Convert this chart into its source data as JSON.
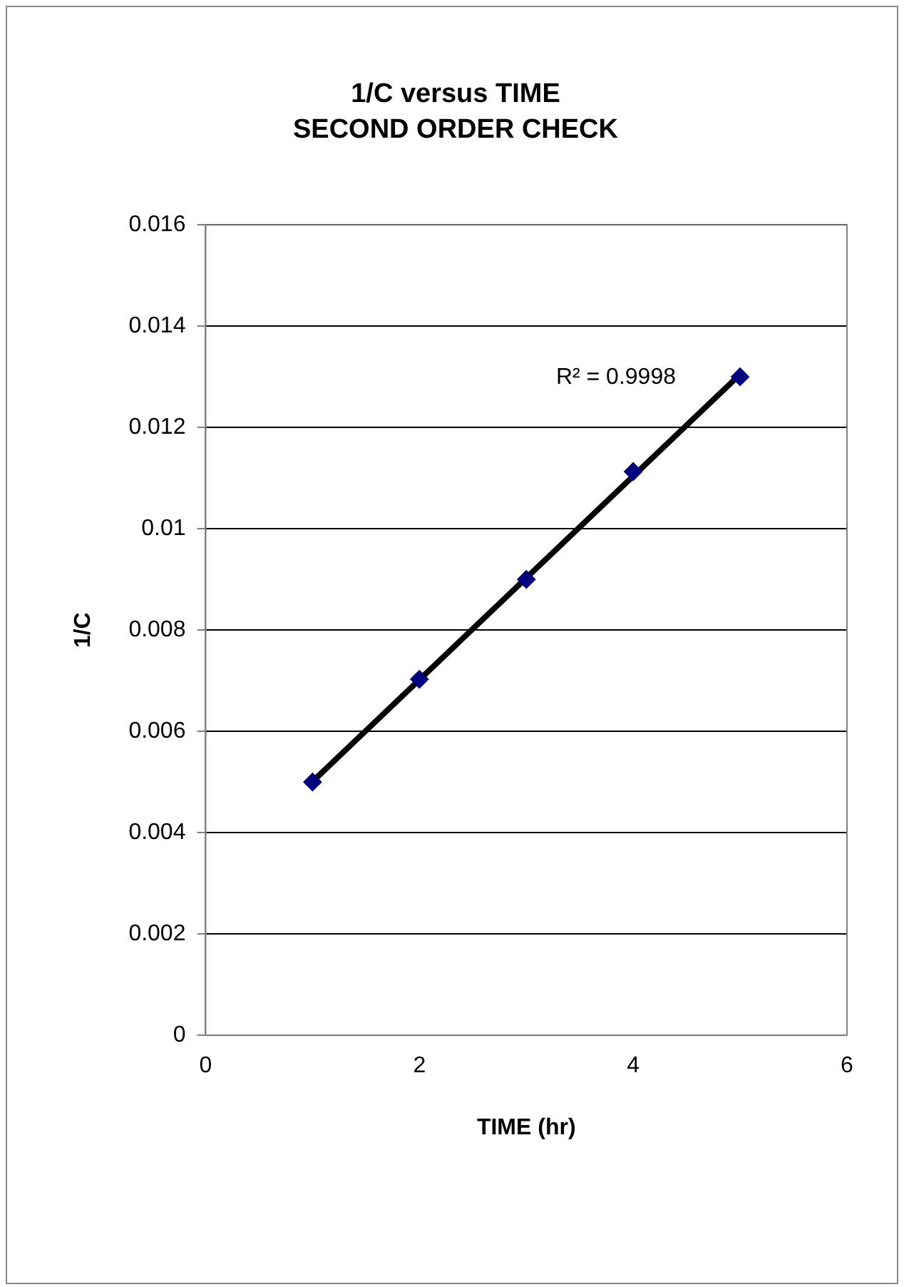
{
  "chart_data": {
    "type": "scatter",
    "title": "1/C versus TIME",
    "subtitle": "SECOND ORDER CHECK",
    "xlabel": "TIME (hr)",
    "ylabel": "1/C",
    "series": [
      {
        "color": "#000080",
        "marker": "diamond",
        "x": [
          1,
          2,
          3,
          4,
          5
        ],
        "values": [
          0.005,
          0.00703,
          0.009,
          0.01113,
          0.013
        ]
      },
      {
        "type": "line",
        "color": "#000000",
        "marker": "none",
        "x": [
          1,
          5
        ],
        "values": [
          0.00501,
          0.01305
        ]
      }
    ],
    "xlim": [
      0,
      6
    ],
    "xticks": [
      0,
      2,
      4,
      6
    ],
    "ylim": [
      0,
      0.016
    ],
    "yticks": [
      0,
      0.002,
      0.004,
      0.006,
      0.008,
      0.01,
      0.012,
      0.014,
      0.016
    ],
    "grid": "y",
    "legend": false,
    "annotations": [
      "R² = 0.9998"
    ]
  }
}
